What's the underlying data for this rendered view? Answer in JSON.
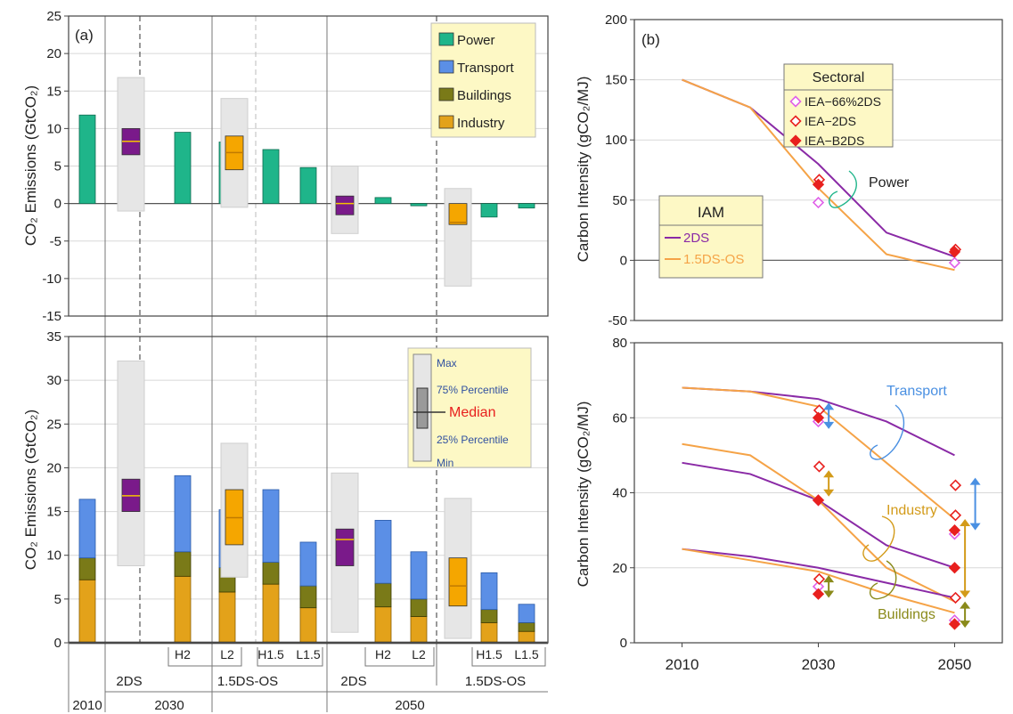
{
  "colors": {
    "power": "#1fb58a",
    "transport": "#5b8fe6",
    "buildings": "#7a7a18",
    "industry": "#e3a21a",
    "iam_bar": "#7a1a8a",
    "orange_bar": "#f5a600",
    "range_box": "#e6e6e6",
    "legend_bg": "#fdf8c5",
    "line_2ds": "#8a2aa6",
    "line_15ds": "#f5a347",
    "marker": "#e8201e",
    "marker_66": "#e060e8",
    "transport_arrow": "#4a90e2",
    "industry_arrow": "#d39b1a",
    "buildings_arrow": "#8a8a1a"
  },
  "panel_a": {
    "label": "(a)",
    "top_ylabel": "CO₂ Emissions (GtCO₂)",
    "bottom_ylabel": "CO₂ Emissions (GtCO₂)",
    "top_legend": [
      "Power",
      "Transport",
      "Buildings",
      "Industry"
    ],
    "box_legend": [
      "Max",
      "75% Percentile",
      "Median",
      "25% Percentile",
      "Min"
    ],
    "xaxis": {
      "row1": [
        "H2",
        "L2",
        "H1.5",
        "L1.5",
        "H2",
        "L2",
        "H1.5",
        "L1.5"
      ],
      "row2": [
        "2DS",
        "1.5DS-OS",
        "2DS",
        "1.5DS-OS"
      ],
      "row3": [
        "2010",
        "2030",
        "2050"
      ]
    }
  },
  "panel_b": {
    "label": "(b)",
    "top_ylabel": "Carbon Intensity (gCO₂/MJ)",
    "bottom_ylabel": "Carbon Intensity (gCO₂/MJ)",
    "sectoral_title": "Sectoral",
    "sectoral_items": [
      "IEA−66%2DS",
      "IEA−2DS",
      "IEA−B2DS"
    ],
    "iam_title": "IAM",
    "iam_items": [
      "2DS",
      "1.5DS-OS"
    ],
    "annotations": {
      "power": "Power",
      "transport": "Transport",
      "industry": "Industry",
      "buildings": "Buildings"
    }
  },
  "chart_data": [
    {
      "type": "bar",
      "panel": "a-top",
      "ylim": [
        -15,
        25
      ],
      "yticks": [
        -15,
        -10,
        -5,
        0,
        5,
        10,
        15,
        20,
        25
      ],
      "categories": [
        "2010",
        "2030 2DS",
        "2030 2DS H2",
        "2030 2DS L2",
        "2030 1.5DS-OS",
        "2030 1.5DS-OS H1.5",
        "2030 1.5DS-OS L1.5",
        "2050 2DS",
        "2050 2DS H2",
        "2050 2DS L2",
        "2050 1.5DS-OS",
        "2050 1.5DS-OS H1.5",
        "2050 1.5DS-OS L1.5"
      ],
      "series": [
        {
          "name": "Power",
          "values": [
            11.8,
            null,
            9.5,
            8.2,
            null,
            7.2,
            4.8,
            null,
            0.8,
            -0.3,
            null,
            -1.8,
            -0.6
          ]
        }
      ],
      "boxes": [
        {
          "category": "2030 2DS",
          "min": -1,
          "q1": 6.5,
          "median": 8.3,
          "q3": 10,
          "max": 16.8,
          "color": "iam_bar"
        },
        {
          "category": "2030 1.5DS-OS",
          "min": -0.5,
          "q1": 4.5,
          "median": 6.8,
          "q3": 9,
          "max": 14,
          "color": "orange_bar"
        },
        {
          "category": "2050 2DS",
          "min": -4,
          "q1": -1.5,
          "median": 0,
          "q3": 1,
          "max": 5,
          "color": "iam_bar"
        },
        {
          "category": "2050 1.5DS-OS",
          "min": -11,
          "q1": -2.8,
          "median": -2.5,
          "q3": 0,
          "max": 2,
          "color": "orange_bar"
        }
      ]
    },
    {
      "type": "bar",
      "panel": "a-bottom",
      "ylim": [
        0,
        35
      ],
      "yticks": [
        0,
        5,
        10,
        15,
        20,
        25,
        30,
        35
      ],
      "categories": [
        "2010",
        "2030 2DS",
        "2030 2DS H2",
        "2030 2DS L2",
        "2030 1.5DS-OS",
        "2030 1.5DS-OS H1.5",
        "2030 1.5DS-OS L1.5",
        "2050 2DS",
        "2050 2DS H2",
        "2050 2DS L2",
        "2050 1.5DS-OS",
        "2050 1.5DS-OS H1.5",
        "2050 1.5DS-OS L1.5"
      ],
      "stacked": true,
      "series": [
        {
          "name": "Industry",
          "values": [
            7.2,
            null,
            7.6,
            5.8,
            null,
            6.7,
            4.0,
            null,
            4.1,
            3.0,
            null,
            2.3,
            1.3
          ]
        },
        {
          "name": "Buildings",
          "values": [
            2.5,
            null,
            2.8,
            2.8,
            null,
            2.5,
            2.5,
            null,
            2.7,
            2.0,
            null,
            1.5,
            1.0
          ]
        },
        {
          "name": "Transport",
          "values": [
            6.7,
            null,
            8.7,
            6.6,
            null,
            8.3,
            5.0,
            null,
            7.2,
            5.4,
            null,
            4.2,
            2.1
          ]
        }
      ],
      "boxes": [
        {
          "category": "2030 2DS",
          "min": 8.8,
          "q1": 15,
          "median": 16.8,
          "q3": 18.7,
          "max": 32.2,
          "color": "iam_bar"
        },
        {
          "category": "2030 1.5DS-OS",
          "min": 7.5,
          "q1": 11.2,
          "median": 14.3,
          "q3": 17.5,
          "max": 22.8,
          "color": "orange_bar"
        },
        {
          "category": "2050 2DS",
          "min": 1.2,
          "q1": 8.8,
          "median": 11.8,
          "q3": 13,
          "max": 19.4,
          "color": "iam_bar"
        },
        {
          "category": "2050 1.5DS-OS",
          "min": 0.5,
          "q1": 4.2,
          "median": 6.5,
          "q3": 9.7,
          "max": 16.5,
          "color": "orange_bar"
        }
      ]
    },
    {
      "type": "line",
      "panel": "b-top",
      "x": [
        2010,
        2020,
        2030,
        2040,
        2050
      ],
      "xticks": [
        2010,
        2030,
        2050
      ],
      "xlim": [
        2003,
        2057
      ],
      "ylim": [
        -50,
        200
      ],
      "yticks": [
        -50,
        0,
        50,
        100,
        150,
        200
      ],
      "series": [
        {
          "name": "2DS",
          "values": [
            150,
            127,
            80,
            23,
            3
          ],
          "color": "line_2ds"
        },
        {
          "name": "1.5DS-OS",
          "values": [
            150,
            127,
            60,
            5,
            -8
          ],
          "color": "line_15ds"
        }
      ],
      "markers": [
        {
          "name": "IEA−66%2DS",
          "style": "open-diamond",
          "points": [
            [
              2030,
              48
            ],
            [
              2050,
              -2
            ]
          ]
        },
        {
          "name": "IEA−2DS",
          "style": "open-diamond",
          "points": [
            [
              2030,
              67
            ],
            [
              2050,
              9
            ]
          ]
        },
        {
          "name": "IEA−B2DS",
          "style": "filled-diamond",
          "points": [
            [
              2030,
              63
            ],
            [
              2050,
              7
            ]
          ]
        }
      ]
    },
    {
      "type": "line",
      "panel": "b-bottom",
      "x": [
        2010,
        2020,
        2030,
        2040,
        2050
      ],
      "xticks": [
        2010,
        2030,
        2050
      ],
      "xlim": [
        2003,
        2057
      ],
      "ylim": [
        0,
        80
      ],
      "yticks": [
        0,
        20,
        40,
        60,
        80
      ],
      "series": [
        {
          "name": "Transport 2DS",
          "values": [
            68,
            67,
            65,
            59,
            50
          ],
          "color": "line_2ds"
        },
        {
          "name": "Transport 1.5DS-OS",
          "values": [
            68,
            67,
            63,
            48,
            33
          ],
          "color": "line_15ds"
        },
        {
          "name": "Industry 2DS",
          "values": [
            48,
            45,
            38,
            26,
            20
          ],
          "color": "line_2ds"
        },
        {
          "name": "Industry 1.5DS-OS",
          "values": [
            53,
            50,
            38,
            20,
            11
          ],
          "color": "line_15ds"
        },
        {
          "name": "Buildings 2DS",
          "values": [
            25,
            23,
            20,
            16,
            12
          ],
          "color": "line_2ds"
        },
        {
          "name": "Buildings 1.5DS-OS",
          "values": [
            25,
            22,
            19,
            13,
            8
          ],
          "color": "line_15ds"
        }
      ],
      "markers": [
        {
          "name": "IEA−66%2DS",
          "style": "open-diamond",
          "points": [
            [
              2030,
              59
            ],
            [
              2030,
              38
            ],
            [
              2030,
              15
            ],
            [
              2050,
              29
            ],
            [
              2050,
              6
            ]
          ]
        },
        {
          "name": "IEA−2DS",
          "style": "open-diamond",
          "points": [
            [
              2030,
              62
            ],
            [
              2030,
              47
            ],
            [
              2030,
              17
            ],
            [
              2050,
              42
            ],
            [
              2050,
              34
            ],
            [
              2050,
              12
            ]
          ]
        },
        {
          "name": "IEA−B2DS",
          "style": "filled-diamond",
          "points": [
            [
              2030,
              60
            ],
            [
              2030,
              38
            ],
            [
              2030,
              13
            ],
            [
              2050,
              30
            ],
            [
              2050,
              20
            ],
            [
              2050,
              5
            ]
          ]
        }
      ],
      "arrows": [
        {
          "sector": "transport",
          "x": 2031,
          "from": 57,
          "to": 64
        },
        {
          "sector": "industry",
          "x": 2031,
          "from": 39,
          "to": 46
        },
        {
          "sector": "buildings",
          "x": 2031,
          "from": 12,
          "to": 18
        },
        {
          "sector": "transport",
          "x": 2052.5,
          "from": 30,
          "to": 44
        },
        {
          "sector": "industry",
          "x": 2051,
          "from": 12,
          "to": 33
        },
        {
          "sector": "buildings",
          "x": 2051,
          "from": 4,
          "to": 11
        }
      ]
    }
  ]
}
